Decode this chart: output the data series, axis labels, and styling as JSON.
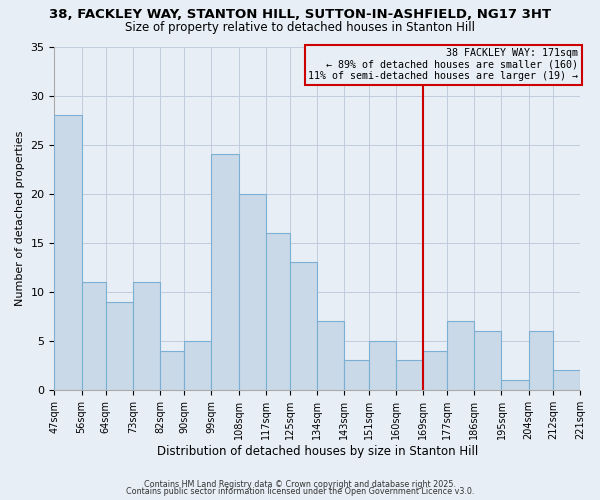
{
  "title1": "38, FACKLEY WAY, STANTON HILL, SUTTON-IN-ASHFIELD, NG17 3HT",
  "title2": "Size of property relative to detached houses in Stanton Hill",
  "xlabel": "Distribution of detached houses by size in Stanton Hill",
  "ylabel": "Number of detached properties",
  "bar_edges": [
    47,
    56,
    64,
    73,
    82,
    90,
    99,
    108,
    117,
    125,
    134,
    143,
    151,
    160,
    169,
    177,
    186,
    195,
    204,
    212,
    221
  ],
  "bar_heights": [
    28,
    11,
    9,
    11,
    4,
    5,
    24,
    20,
    16,
    13,
    7,
    3,
    5,
    3,
    4,
    7,
    6,
    1,
    6,
    2,
    0
  ],
  "bar_color": "#c9d9e8",
  "bar_edge_color": "#7bafd4",
  "grid_color": "#c0ccdd",
  "bg_color": "#e8eef5",
  "vline_x": 169,
  "vline_color": "#cc0000",
  "annotation_box_text": "38 FACKLEY WAY: 171sqm\n← 89% of detached houses are smaller (160)\n11% of semi-detached houses are larger (19) →",
  "annotation_box_color": "#cc0000",
  "ylim": [
    0,
    35
  ],
  "yticks": [
    0,
    5,
    10,
    15,
    20,
    25,
    30,
    35
  ],
  "tick_labels": [
    "47sqm",
    "56sqm",
    "64sqm",
    "73sqm",
    "82sqm",
    "90sqm",
    "99sqm",
    "108sqm",
    "117sqm",
    "125sqm",
    "134sqm",
    "143sqm",
    "151sqm",
    "160sqm",
    "169sqm",
    "177sqm",
    "186sqm",
    "195sqm",
    "204sqm",
    "212sqm",
    "221sqm"
  ],
  "footer1": "Contains HM Land Registry data © Crown copyright and database right 2025.",
  "footer2": "Contains public sector information licensed under the Open Government Licence v3.0."
}
